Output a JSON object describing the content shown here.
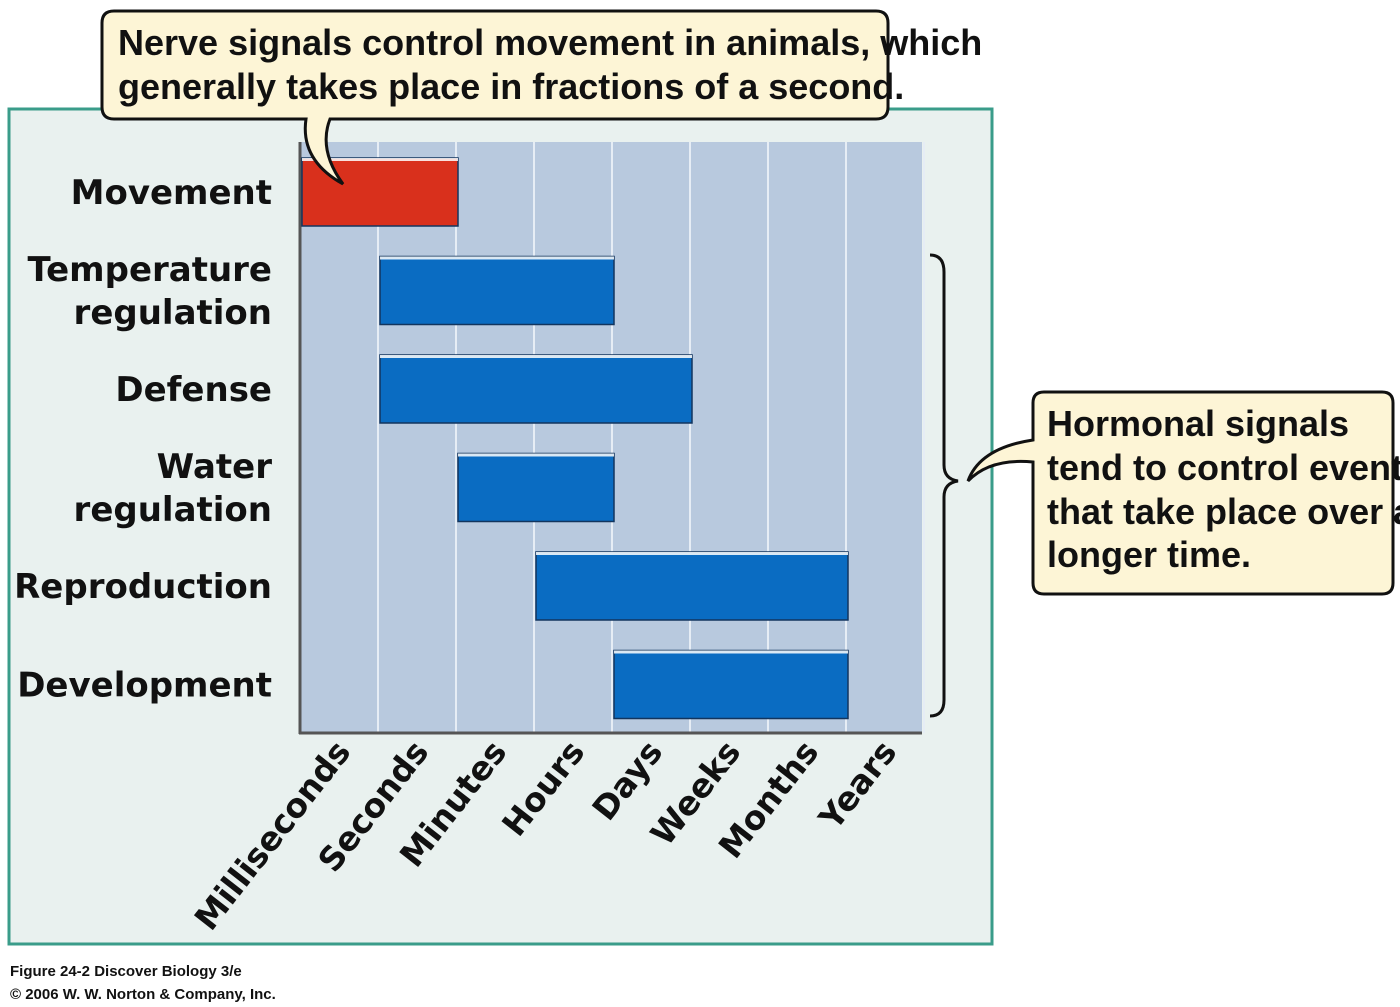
{
  "chart_data": {
    "type": "bar",
    "orientation": "horizontal-range",
    "x_categories": [
      "Milliseconds",
      "Seconds",
      "Minutes",
      "Hours",
      "Days",
      "Weeks",
      "Months",
      "Years"
    ],
    "rows": [
      {
        "label_lines": [
          "Movement"
        ],
        "start": "Milliseconds",
        "end": "Minutes",
        "signal": "nerve"
      },
      {
        "label_lines": [
          "Temperature",
          "regulation"
        ],
        "start": "Seconds",
        "end": "Days",
        "signal": "hormonal"
      },
      {
        "label_lines": [
          "Defense"
        ],
        "start": "Seconds",
        "end": "Weeks",
        "signal": "hormonal"
      },
      {
        "label_lines": [
          "Water",
          "regulation"
        ],
        "start": "Minutes",
        "end": "Days",
        "signal": "hormonal"
      },
      {
        "label_lines": [
          "Reproduction"
        ],
        "start": "Hours",
        "end": "Years",
        "signal": "hormonal"
      },
      {
        "label_lines": [
          "Development"
        ],
        "start": "Days",
        "end": "Years",
        "signal": "hormonal"
      }
    ],
    "grid": true,
    "colors": {
      "nerve": "#d9301c",
      "hormonal": "#0a6cc2",
      "plot_bg": "#b8c9de",
      "frame": "#3a9c8a",
      "callout_bg": "#fdf5d6"
    }
  },
  "callouts": {
    "nerve": [
      "Nerve signals control movement in animals, which",
      "generally takes place in fractions of a second."
    ],
    "hormonal": [
      "Hormonal signals",
      "tend to control events",
      "that take place over a",
      "longer time."
    ]
  },
  "caption": {
    "line1": "Figure 24-2  Discover Biology 3/e",
    "line2": "© 2006 W. W. Norton & Company, Inc."
  }
}
